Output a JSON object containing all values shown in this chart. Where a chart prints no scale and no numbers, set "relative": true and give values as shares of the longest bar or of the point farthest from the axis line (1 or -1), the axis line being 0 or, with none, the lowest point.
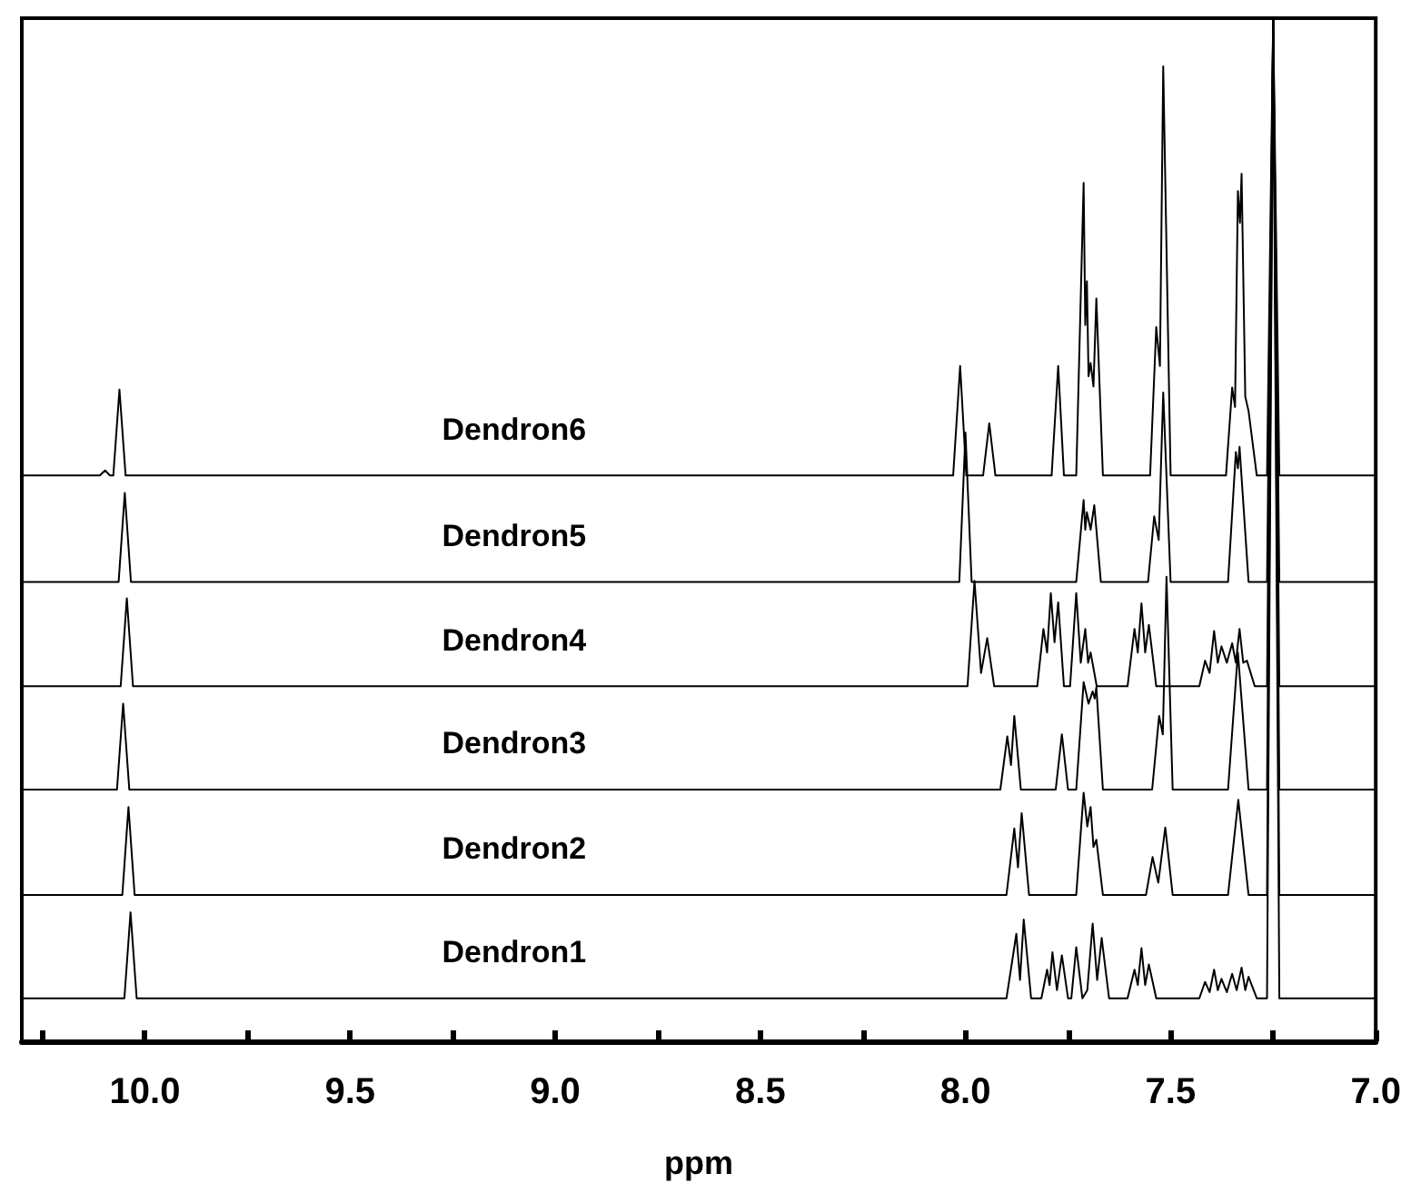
{
  "chart_data": {
    "type": "line",
    "xlabel": "ppm",
    "relative": true,
    "legend": false,
    "grid": false,
    "marker": "none",
    "line_style": "solid",
    "xlim": [
      10.3,
      7.0
    ],
    "xticks": [
      {
        "value": 10.25,
        "label": null
      },
      {
        "value": 10,
        "label": "10.0"
      },
      {
        "value": 9.75,
        "label": null
      },
      9.5,
      {
        "value": 9.25,
        "label": null
      },
      {
        "value": 9,
        "label": "9.0"
      },
      {
        "value": 8.75,
        "label": null
      },
      8.5,
      {
        "value": 8.25,
        "label": null
      },
      {
        "value": 8,
        "label": "8.0"
      },
      {
        "value": 7.75,
        "label": null
      },
      7.5,
      {
        "value": 7.25,
        "label": null
      },
      {
        "value": 7,
        "label": "7.0"
      }
    ],
    "series": [
      {
        "name": "Dendron1",
        "color": "#000000",
        "x": [
          10.3,
          10.05,
          10.035,
          10.02,
          7.9,
          7.876,
          7.867,
          7.858,
          7.84,
          7.815,
          7.801,
          7.795,
          7.788,
          7.777,
          7.765,
          7.75,
          7.742,
          7.73,
          7.715,
          7.703,
          7.69,
          7.679,
          7.668,
          7.65,
          7.605,
          7.588,
          7.58,
          7.571,
          7.562,
          7.553,
          7.535,
          7.43,
          7.416,
          7.405,
          7.394,
          7.385,
          7.376,
          7.363,
          7.35,
          7.339,
          7.327,
          7.318,
          7.31,
          7.29,
          7.265,
          7.25,
          7.235,
          7.0
        ],
        "values": [
          0.042,
          0.042,
          0.126,
          0.042,
          0.042,
          0.105,
          0.06,
          0.119,
          0.042,
          0.042,
          0.07,
          0.055,
          0.087,
          0.05,
          0.084,
          0.042,
          0.042,
          0.092,
          0.042,
          0.05,
          0.115,
          0.06,
          0.101,
          0.042,
          0.042,
          0.07,
          0.055,
          0.091,
          0.055,
          0.075,
          0.042,
          0.042,
          0.058,
          0.048,
          0.07,
          0.05,
          0.061,
          0.048,
          0.066,
          0.05,
          0.072,
          0.05,
          0.063,
          0.042,
          0.042,
          1,
          0.042,
          0.042
        ]
      },
      {
        "name": "Dendron2",
        "color": "#000000",
        "x": [
          10.3,
          10.055,
          10.04,
          10.025,
          7.9,
          7.881,
          7.872,
          7.863,
          7.845,
          7.73,
          7.712,
          7.703,
          7.695,
          7.688,
          7.681,
          7.665,
          7.56,
          7.544,
          7.53,
          7.513,
          7.495,
          7.36,
          7.335,
          7.31,
          7.265,
          7.25,
          7.235,
          7.0
        ],
        "values": [
          0.143,
          0.143,
          0.229,
          0.143,
          0.143,
          0.208,
          0.17,
          0.223,
          0.143,
          0.143,
          0.243,
          0.21,
          0.229,
          0.19,
          0.197,
          0.143,
          0.143,
          0.18,
          0.155,
          0.209,
          0.143,
          0.143,
          0.236,
          0.143,
          0.143,
          1,
          0.143,
          0.143
        ]
      },
      {
        "name": "Dendron3",
        "color": "#000000",
        "x": [
          10.3,
          10.068,
          10.053,
          10.038,
          7.915,
          7.898,
          7.889,
          7.881,
          7.865,
          7.78,
          7.765,
          7.75,
          7.73,
          7.712,
          7.7,
          7.69,
          7.685,
          7.681,
          7.665,
          7.545,
          7.528,
          7.519,
          7.51,
          7.495,
          7.36,
          7.336,
          7.31,
          7.265,
          7.25,
          7.235,
          7.0
        ],
        "values": [
          0.246,
          0.246,
          0.33,
          0.246,
          0.246,
          0.298,
          0.27,
          0.318,
          0.246,
          0.246,
          0.3,
          0.246,
          0.246,
          0.351,
          0.33,
          0.342,
          0.335,
          0.346,
          0.246,
          0.246,
          0.318,
          0.3,
          0.454,
          0.246,
          0.246,
          0.38,
          0.246,
          0.246,
          1,
          0.246,
          0.246
        ]
      },
      {
        "name": "Dendron4",
        "color": "#000000",
        "x": [
          10.3,
          10.059,
          10.044,
          10.029,
          7.995,
          7.978,
          7.962,
          7.947,
          7.93,
          7.825,
          7.81,
          7.801,
          7.792,
          7.783,
          7.774,
          7.76,
          7.745,
          7.73,
          7.719,
          7.708,
          7.701,
          7.695,
          7.68,
          7.605,
          7.588,
          7.58,
          7.571,
          7.562,
          7.553,
          7.535,
          7.43,
          7.416,
          7.405,
          7.394,
          7.385,
          7.376,
          7.363,
          7.35,
          7.341,
          7.332,
          7.323,
          7.314,
          7.295,
          7.265,
          7.25,
          7.235,
          7.0
        ],
        "values": [
          0.347,
          0.347,
          0.433,
          0.347,
          0.347,
          0.45,
          0.36,
          0.394,
          0.347,
          0.347,
          0.403,
          0.38,
          0.438,
          0.39,
          0.429,
          0.347,
          0.347,
          0.438,
          0.37,
          0.403,
          0.37,
          0.38,
          0.347,
          0.347,
          0.403,
          0.38,
          0.428,
          0.38,
          0.407,
          0.347,
          0.347,
          0.372,
          0.36,
          0.401,
          0.37,
          0.386,
          0.37,
          0.389,
          0.37,
          0.403,
          0.37,
          0.372,
          0.347,
          0.347,
          1,
          0.347,
          0.347
        ]
      },
      {
        "name": "Dendron5",
        "color": "#000000",
        "x": [
          10.3,
          10.064,
          10.049,
          10.034,
          8.015,
          8.0,
          7.985,
          7.73,
          7.712,
          7.708,
          7.704,
          7.695,
          7.686,
          7.67,
          7.555,
          7.54,
          7.529,
          7.518,
          7.5,
          7.36,
          7.341,
          7.336,
          7.332,
          7.31,
          7.265,
          7.25,
          7.235,
          7.0
        ],
        "values": [
          0.449,
          0.449,
          0.536,
          0.449,
          0.449,
          0.595,
          0.449,
          0.449,
          0.529,
          0.5,
          0.517,
          0.5,
          0.524,
          0.449,
          0.449,
          0.513,
          0.49,
          0.634,
          0.449,
          0.449,
          0.576,
          0.56,
          0.581,
          0.449,
          0.449,
          1,
          0.449,
          0.449
        ]
      },
      {
        "name": "Dendron6",
        "color": "#000000",
        "x": [
          10.3,
          10.11,
          10.097,
          10.085,
          10.077,
          10.062,
          10.047,
          8.03,
          8.013,
          7.998,
          7.957,
          7.942,
          7.927,
          7.79,
          7.774,
          7.76,
          7.73,
          7.712,
          7.708,
          7.704,
          7.7,
          7.695,
          7.688,
          7.681,
          7.665,
          7.55,
          7.535,
          7.526,
          7.518,
          7.5,
          7.365,
          7.35,
          7.343,
          7.336,
          7.331,
          7.327,
          7.318,
          7.31,
          7.29,
          7.265,
          7.25,
          7.235,
          7.0
        ],
        "values": [
          0.553,
          0.553,
          0.558,
          0.553,
          0.553,
          0.637,
          0.553,
          0.553,
          0.66,
          0.553,
          0.553,
          0.604,
          0.553,
          0.553,
          0.66,
          0.553,
          0.553,
          0.839,
          0.7,
          0.743,
          0.65,
          0.663,
          0.64,
          0.726,
          0.553,
          0.553,
          0.698,
          0.66,
          0.953,
          0.553,
          0.553,
          0.639,
          0.62,
          0.831,
          0.8,
          0.848,
          0.63,
          0.616,
          0.553,
          0.553,
          1,
          0.553,
          0.553
        ]
      }
    ]
  }
}
